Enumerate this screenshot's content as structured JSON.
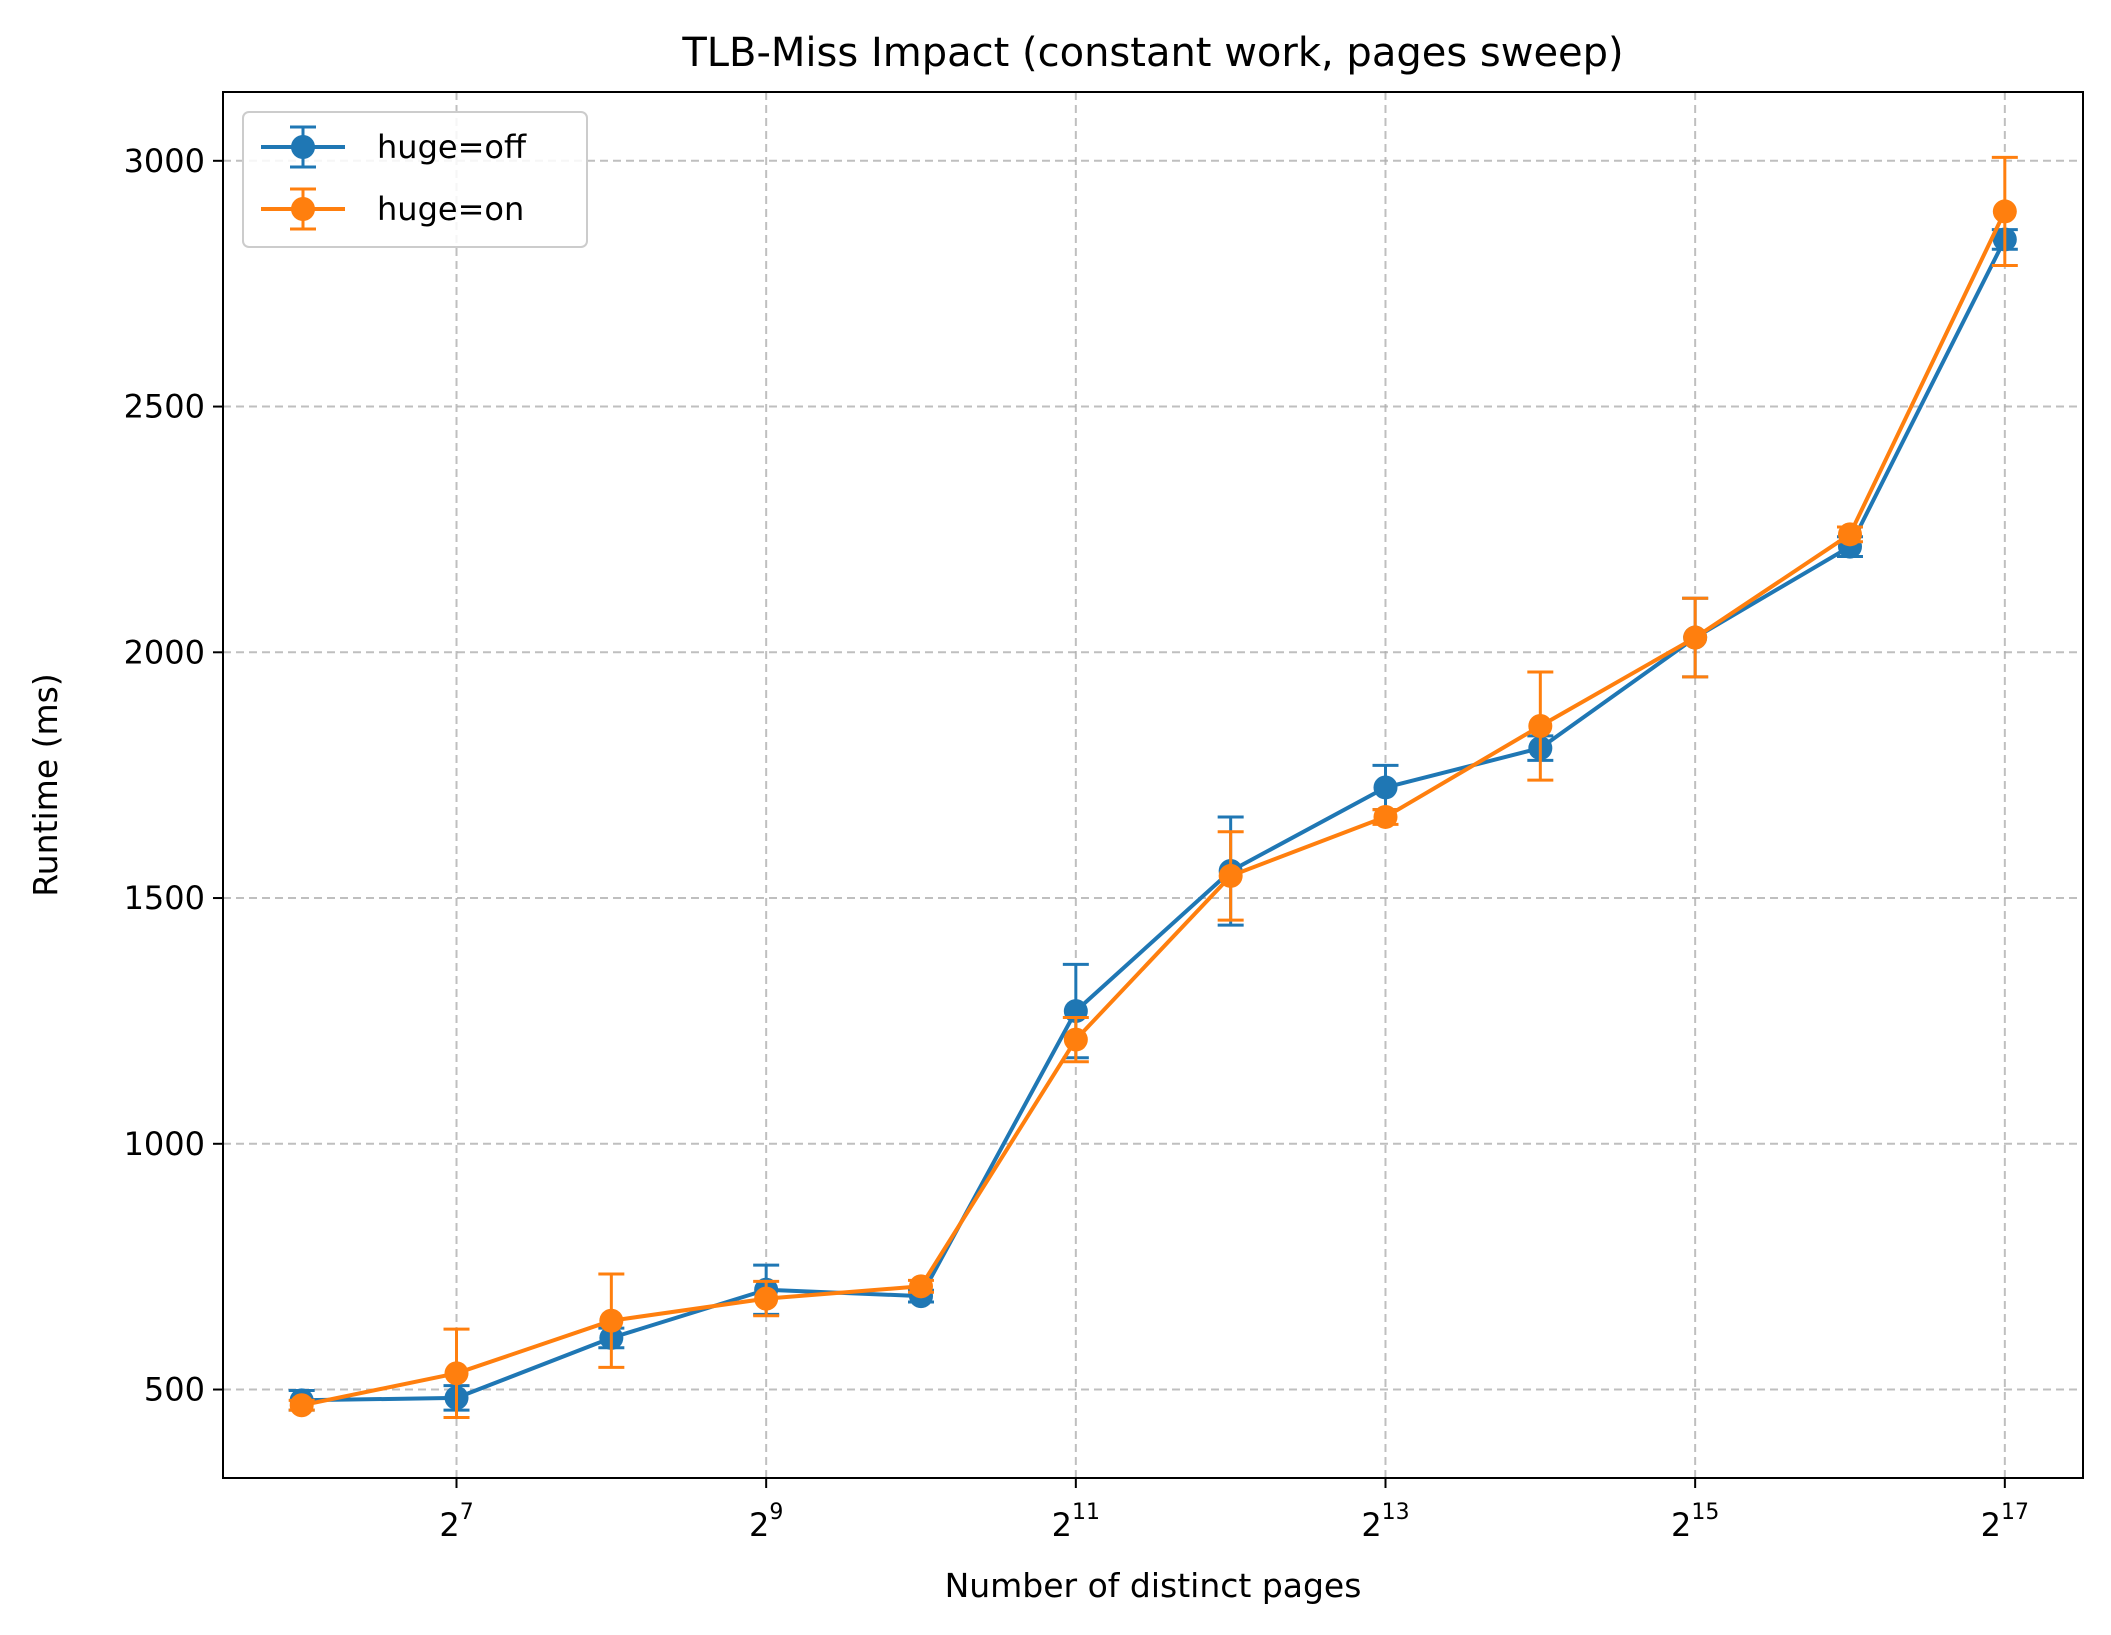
{
  "chart_data": {
    "type": "line",
    "title": "TLB-Miss Impact (constant work, pages sweep)",
    "xlabel": "Number of distinct pages",
    "ylabel": "Runtime (ms)",
    "x_scale": "log2",
    "x": [
      64,
      128,
      256,
      512,
      1024,
      2048,
      4096,
      8192,
      16384,
      32768,
      65536,
      131072
    ],
    "x_ticks": [
      {
        "value": 128,
        "base": "2",
        "exp": "7"
      },
      {
        "value": 512,
        "base": "2",
        "exp": "9"
      },
      {
        "value": 2048,
        "base": "2",
        "exp": "11"
      },
      {
        "value": 8192,
        "base": "2",
        "exp": "13"
      },
      {
        "value": 32768,
        "base": "2",
        "exp": "15"
      },
      {
        "value": 131072,
        "base": "2",
        "exp": "17"
      }
    ],
    "xlim": [
      45,
      186000
    ],
    "y_ticks": [
      500,
      1000,
      1500,
      2000,
      2500,
      3000
    ],
    "ylim": [
      320,
      3140
    ],
    "grid": true,
    "legend_position": "top-left",
    "series": [
      {
        "name": "huge=off",
        "color": "#1f77b4",
        "values": [
          478,
          483,
          605,
          703,
          690,
          1270,
          1555,
          1725,
          1805,
          2030,
          2215,
          2840
        ],
        "errors": [
          20,
          25,
          20,
          50,
          12,
          95,
          110,
          45,
          25,
          80,
          20,
          20
        ]
      },
      {
        "name": "huge=on",
        "color": "#ff7f0e",
        "values": [
          468,
          533,
          640,
          685,
          710,
          1212,
          1545,
          1665,
          1850,
          2030,
          2240,
          2897
        ],
        "errors": [
          10,
          90,
          95,
          35,
          12,
          45,
          90,
          15,
          110,
          80,
          15,
          110
        ]
      }
    ]
  }
}
